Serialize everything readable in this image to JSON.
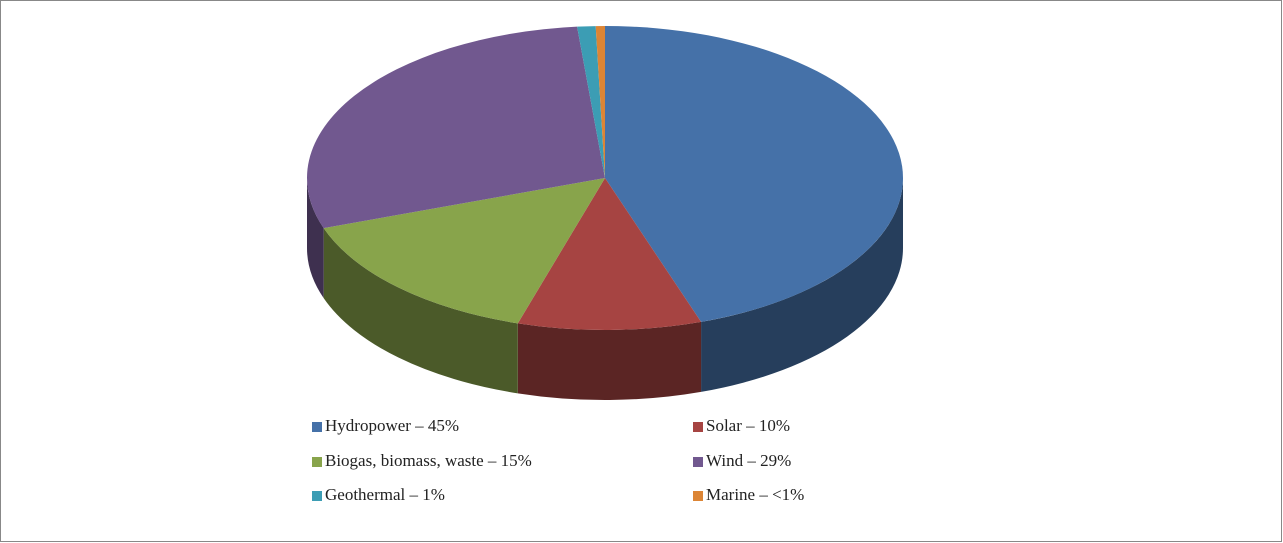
{
  "chart_data": {
    "type": "pie",
    "categories": [
      "Hydropower – 45%",
      "Solar – 10%",
      "Biogas, biomass, waste – 15%",
      "Wind – 29%",
      "Geothermal – 1%",
      "Marine – <1%"
    ],
    "values": [
      45,
      10,
      15,
      29,
      1,
      0.5
    ],
    "colors": [
      "#4571a8",
      "#a64442",
      "#88a44b",
      "#71588f",
      "#3c9db4",
      "#dc8535"
    ],
    "legend": "bottom"
  }
}
